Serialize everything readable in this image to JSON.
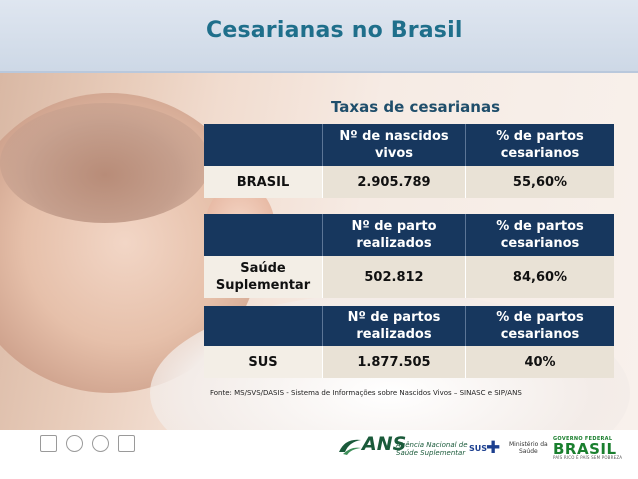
{
  "title": "Cesarianas no Brasil",
  "table_title": "Taxas de cesarianas",
  "tables": [
    {
      "headers": [
        "",
        "Nº de nascidos vivos",
        "% de partos cesarianos"
      ],
      "row": [
        "BRASIL",
        "2.905.789",
        "55,60%"
      ]
    },
    {
      "headers": [
        "",
        "Nº de parto realizados",
        "% de partos cesarianos"
      ],
      "row": [
        "Saúde Suplementar",
        "502.812",
        "84,60%"
      ]
    },
    {
      "headers": [
        "",
        "Nº de partos realizados",
        "% de partos cesarianos"
      ],
      "row": [
        "SUS",
        "1.877.505",
        "40%"
      ]
    }
  ],
  "source": "Fonte: MS/SVS/DASIS - Sistema de Informações sobre Nascidos Vivos – SINASC e SIP/ANS",
  "footer": {
    "ans_logo": "ANS",
    "ans_sub_line1": "Agência Nacional de",
    "ans_sub_line2": "Saúde Suplementar",
    "sus_logo": "SUS",
    "ministerio_line1": "Ministério da",
    "ministerio_line2": "Saúde",
    "brasil_top": "GOVERNO FEDERAL",
    "brasil_logo": "BRASIL",
    "brasil_bottom": "PAÍS RICO É PAÍS SEM POBREZA"
  },
  "colors": {
    "title": "#1f6f8b",
    "table_header": "#17375e",
    "table_body": "#e9e2d6",
    "ans_green": "#1a5a3a",
    "sus_blue": "#1c3f8f",
    "brasil_green": "#1a7f2e"
  },
  "icons": [
    "seal-icon",
    "ans-logo-icon",
    "sus-cross-icon"
  ]
}
